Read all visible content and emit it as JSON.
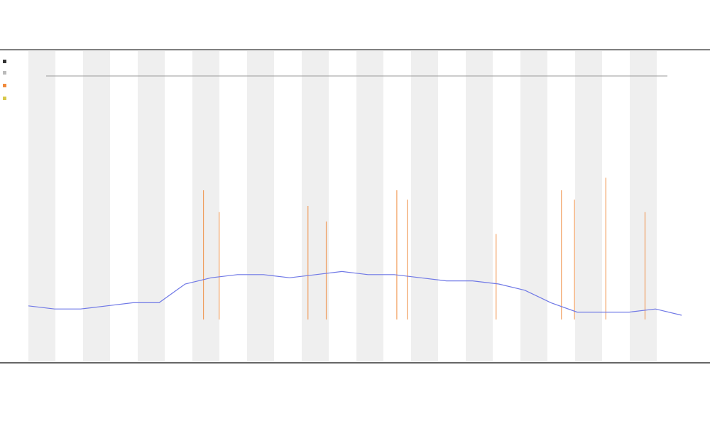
{
  "chart_data": {
    "type": "line",
    "xlim": [
      0,
      25
    ],
    "ylim": [
      0,
      100
    ],
    "series": [
      {
        "color": "#6f78e6",
        "x": [
          0,
          1,
          2,
          3,
          4,
          5,
          6,
          7,
          8,
          9,
          10,
          11,
          12,
          13,
          14,
          15,
          16,
          17,
          18,
          19,
          20,
          21,
          22,
          23,
          24,
          25
        ],
        "values": [
          18,
          17,
          17,
          18,
          19,
          19,
          25,
          27,
          28,
          28,
          27,
          28,
          29,
          28,
          28,
          27,
          26,
          26,
          25,
          23,
          19,
          16,
          16,
          16,
          17,
          15
        ]
      },
      {
        "color": "#f08a3c",
        "x": [
          6.7,
          7.3,
          10.7,
          11.4,
          14.1,
          14.5,
          17.9,
          20.4,
          20.9,
          22.1,
          23.6
        ],
        "values": [
          55,
          48,
          50,
          45,
          55,
          52,
          41,
          55,
          52,
          59,
          48
        ]
      }
    ]
  }
}
